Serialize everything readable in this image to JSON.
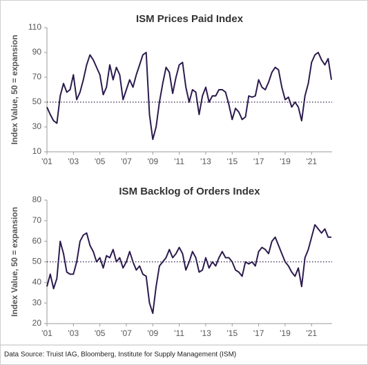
{
  "chart_data": [
    {
      "type": "line",
      "title": "ISM Prices Paid Index",
      "y_label": "Index Value, 50 = expansion",
      "x": [
        2001,
        2001.25,
        2001.5,
        2001.75,
        2002,
        2002.25,
        2002.5,
        2002.75,
        2003,
        2003.25,
        2003.5,
        2003.75,
        2004,
        2004.25,
        2004.5,
        2004.75,
        2005,
        2005.25,
        2005.5,
        2005.75,
        2006,
        2006.25,
        2006.5,
        2006.75,
        2007,
        2007.25,
        2007.5,
        2007.75,
        2008,
        2008.25,
        2008.5,
        2008.75,
        2009,
        2009.25,
        2009.5,
        2009.75,
        2010,
        2010.25,
        2010.5,
        2010.75,
        2011,
        2011.25,
        2011.5,
        2011.75,
        2012,
        2012.25,
        2012.5,
        2012.75,
        2013,
        2013.25,
        2013.5,
        2013.75,
        2014,
        2014.25,
        2014.5,
        2014.75,
        2015,
        2015.25,
        2015.5,
        2015.75,
        2016,
        2016.25,
        2016.5,
        2016.75,
        2017,
        2017.25,
        2017.5,
        2017.75,
        2018,
        2018.25,
        2018.5,
        2018.75,
        2019,
        2019.25,
        2019.5,
        2019.75,
        2020,
        2020.25,
        2020.5,
        2020.75,
        2021,
        2021.25,
        2021.5,
        2021.75,
        2022,
        2022.25,
        2022.5
      ],
      "series": [
        {
          "color": "#2b1a4d",
          "values": [
            46,
            40,
            35,
            33,
            55,
            65,
            58,
            60,
            72,
            52,
            58,
            68,
            80,
            88,
            84,
            78,
            72,
            56,
            62,
            80,
            68,
            78,
            72,
            52,
            60,
            68,
            62,
            72,
            80,
            88,
            90,
            40,
            20,
            30,
            50,
            65,
            78,
            74,
            57,
            70,
            80,
            82,
            62,
            50,
            60,
            58,
            40,
            55,
            62,
            50,
            55,
            55,
            60,
            60,
            58,
            48,
            36,
            45,
            42,
            36,
            38,
            55,
            54,
            55,
            68,
            62,
            60,
            66,
            74,
            78,
            76,
            62,
            52,
            54,
            46,
            50,
            46,
            35,
            55,
            65,
            82,
            88,
            90,
            84,
            80,
            85,
            68
          ]
        }
      ],
      "xlim": [
        2001,
        2022.55
      ],
      "xticks": [
        {
          "value": 2001,
          "label": "'01"
        },
        {
          "value": 2003,
          "label": "'03"
        },
        {
          "value": 2005,
          "label": "'05"
        },
        {
          "value": 2007,
          "label": "'07"
        },
        {
          "value": 2009,
          "label": "'09"
        },
        {
          "value": 2011,
          "label": "'11"
        },
        {
          "value": 2013,
          "label": "'13"
        },
        {
          "value": 2015,
          "label": "'15"
        },
        {
          "value": 2017,
          "label": "'17"
        },
        {
          "value": 2019,
          "label": "'19"
        },
        {
          "value": 2021,
          "label": "'21"
        }
      ],
      "ylim": [
        10,
        110
      ],
      "yticks": [
        10,
        30,
        50,
        70,
        90,
        110
      ],
      "reference_line": 50
    },
    {
      "type": "line",
      "title": "ISM Backlog of Orders Index",
      "y_label": "Index Value, 50 = expansion",
      "x": [
        2001,
        2001.25,
        2001.5,
        2001.75,
        2002,
        2002.25,
        2002.5,
        2002.75,
        2003,
        2003.25,
        2003.5,
        2003.75,
        2004,
        2004.25,
        2004.5,
        2004.75,
        2005,
        2005.25,
        2005.5,
        2005.75,
        2006,
        2006.25,
        2006.5,
        2006.75,
        2007,
        2007.25,
        2007.5,
        2007.75,
        2008,
        2008.25,
        2008.5,
        2008.75,
        2009,
        2009.25,
        2009.5,
        2009.75,
        2010,
        2010.25,
        2010.5,
        2010.75,
        2011,
        2011.25,
        2011.5,
        2011.75,
        2012,
        2012.25,
        2012.5,
        2012.75,
        2013,
        2013.25,
        2013.5,
        2013.75,
        2014,
        2014.25,
        2014.5,
        2014.75,
        2015,
        2015.25,
        2015.5,
        2015.75,
        2016,
        2016.25,
        2016.5,
        2016.75,
        2017,
        2017.25,
        2017.5,
        2017.75,
        2018,
        2018.25,
        2018.5,
        2018.75,
        2019,
        2019.25,
        2019.5,
        2019.75,
        2020,
        2020.25,
        2020.5,
        2020.75,
        2021,
        2021.25,
        2021.5,
        2021.75,
        2022,
        2022.25,
        2022.5
      ],
      "series": [
        {
          "color": "#2b1a4d",
          "values": [
            38,
            44,
            37,
            42,
            60,
            54,
            45,
            44,
            44,
            50,
            60,
            63,
            64,
            58,
            55,
            50,
            52,
            47,
            53,
            52,
            56,
            50,
            52,
            47,
            50,
            55,
            50,
            46,
            48,
            44,
            43,
            30,
            25,
            38,
            48,
            50,
            52,
            56,
            52,
            54,
            57,
            54,
            46,
            50,
            55,
            52,
            45,
            46,
            52,
            47,
            50,
            48,
            52,
            55,
            52,
            52,
            50,
            46,
            45,
            43,
            50,
            49,
            50,
            48,
            55,
            57,
            56,
            54,
            60,
            62,
            58,
            54,
            50,
            48,
            45,
            43,
            47,
            38,
            52,
            56,
            62,
            68,
            66,
            64,
            66,
            62,
            62
          ]
        }
      ],
      "xlim": [
        2001,
        2022.55
      ],
      "xticks": [
        {
          "value": 2001,
          "label": "'01"
        },
        {
          "value": 2003,
          "label": "'03"
        },
        {
          "value": 2005,
          "label": "'05"
        },
        {
          "value": 2007,
          "label": "'07"
        },
        {
          "value": 2009,
          "label": "'09"
        },
        {
          "value": 2011,
          "label": "'11"
        },
        {
          "value": 2013,
          "label": "'13"
        },
        {
          "value": 2015,
          "label": "'15"
        },
        {
          "value": 2017,
          "label": "'17"
        },
        {
          "value": 2019,
          "label": "'19"
        },
        {
          "value": 2021,
          "label": "'21"
        }
      ],
      "ylim": [
        20,
        80
      ],
      "yticks": [
        20,
        30,
        40,
        50,
        60,
        70,
        80
      ],
      "reference_line": 50
    }
  ],
  "source": "Data Source: Truist IAG, Bloomberg, Institute for Supply Management (ISM)"
}
